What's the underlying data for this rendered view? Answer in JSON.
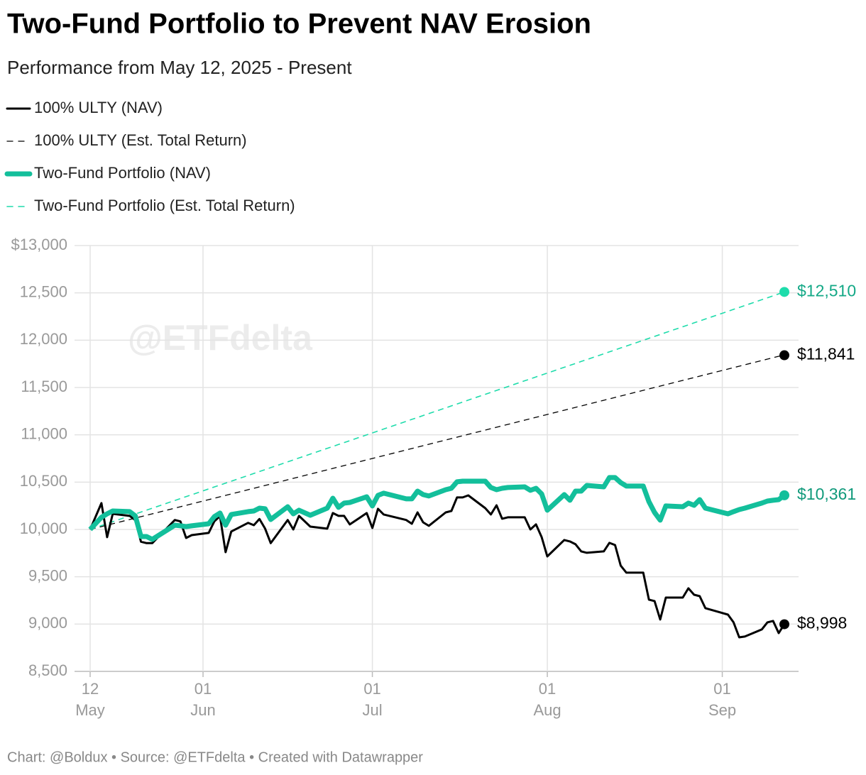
{
  "chart_data": {
    "type": "line",
    "title": "Two-Fund Portfolio to Prevent NAV Erosion",
    "subtitle": "Performance from May 12, 2025 - Present",
    "watermark": "@ETFdelta",
    "source": "Chart: @Boldux • Source: @ETFdelta • Created with Datawrapper",
    "x": [
      "2025-05-12",
      "2025-05-14",
      "2025-05-15",
      "2025-05-16",
      "2025-05-19",
      "2025-05-20",
      "2025-05-21",
      "2025-05-22",
      "2025-05-23",
      "2025-05-27",
      "2025-05-28",
      "2025-05-29",
      "2025-05-30",
      "2025-06-02",
      "2025-06-03",
      "2025-06-04",
      "2025-06-05",
      "2025-06-06",
      "2025-06-09",
      "2025-06-10",
      "2025-06-11",
      "2025-06-12",
      "2025-06-13",
      "2025-06-16",
      "2025-06-17",
      "2025-06-18",
      "2025-06-20",
      "2025-06-23",
      "2025-06-24",
      "2025-06-25",
      "2025-06-26",
      "2025-06-27",
      "2025-06-30",
      "2025-07-01",
      "2025-07-02",
      "2025-07-03",
      "2025-07-07",
      "2025-07-08",
      "2025-07-09",
      "2025-07-10",
      "2025-07-11",
      "2025-07-14",
      "2025-07-15",
      "2025-07-16",
      "2025-07-17",
      "2025-07-18",
      "2025-07-21",
      "2025-07-22",
      "2025-07-23",
      "2025-07-24",
      "2025-07-25",
      "2025-07-28",
      "2025-07-29",
      "2025-07-30",
      "2025-07-31",
      "2025-08-01",
      "2025-08-04",
      "2025-08-05",
      "2025-08-06",
      "2025-08-07",
      "2025-08-08",
      "2025-08-11",
      "2025-08-12",
      "2025-08-13",
      "2025-08-14",
      "2025-08-15",
      "2025-08-18",
      "2025-08-19",
      "2025-08-20",
      "2025-08-21",
      "2025-08-22",
      "2025-08-25",
      "2025-08-26",
      "2025-08-27",
      "2025-08-28",
      "2025-08-29",
      "2025-09-02",
      "2025-09-03",
      "2025-09-04",
      "2025-09-05",
      "2025-09-08",
      "2025-09-09",
      "2025-09-10",
      "2025-09-11",
      "2025-09-12"
    ],
    "series": [
      {
        "name": "100% ULTY (NAV)",
        "color": "#000000",
        "line_style": "solid",
        "end_label": "$8,998",
        "label_color": "#000000",
        "values": [
          10000,
          10278,
          9918,
          10165,
          10143,
          10098,
          9870,
          9855,
          9855,
          10100,
          10085,
          9910,
          9940,
          9963,
          10085,
          10140,
          9760,
          9978,
          10070,
          10045,
          10110,
          10008,
          9855,
          10100,
          10000,
          10143,
          10030,
          10008,
          10173,
          10143,
          10143,
          10053,
          10173,
          10015,
          10218,
          10158,
          10100,
          10060,
          10180,
          10075,
          10038,
          10180,
          10195,
          10338,
          10338,
          10360,
          10225,
          10158,
          10255,
          10113,
          10128,
          10128,
          10000,
          10053,
          9918,
          9715,
          9888,
          9873,
          9843,
          9768,
          9753,
          9768,
          9858,
          9835,
          9618,
          9543,
          9543,
          9258,
          9243,
          9048,
          9280,
          9280,
          9378,
          9310,
          9295,
          9168,
          9100,
          9018,
          8860,
          8868,
          8943,
          9018,
          9033,
          8905,
          8998
        ]
      },
      {
        "name": "100% ULTY (Est. Total Return)",
        "color": "#000000",
        "line_style": "dashed",
        "end_label": "$11,841",
        "label_color": "#000000",
        "values": [
          10000,
          10030,
          10045,
          10060,
          10105,
          10120,
          10135,
          10150,
          10165,
          10225,
          10240,
          10255,
          10270,
          10315,
          10330,
          10345,
          10360,
          10375,
          10420,
          10435,
          10450,
          10465,
          10480,
          10525,
          10540,
          10555,
          10585,
          10630,
          10645,
          10660,
          10675,
          10690,
          10735,
          10750,
          10765,
          10780,
          10840,
          10855,
          10870,
          10885,
          10900,
          10945,
          10960,
          10975,
          10990,
          11005,
          11050,
          11065,
          11080,
          11095,
          11110,
          11155,
          11170,
          11185,
          11200,
          11215,
          11260,
          11275,
          11290,
          11305,
          11320,
          11365,
          11380,
          11395,
          11410,
          11425,
          11470,
          11485,
          11500,
          11515,
          11530,
          11575,
          11590,
          11605,
          11620,
          11635,
          11695,
          11710,
          11725,
          11740,
          11785,
          11800,
          11815,
          11830,
          11841
        ]
      },
      {
        "name": "Two-Fund Portfolio (NAV)",
        "color": "#13bf9b",
        "line_style": "solid",
        "end_label": "$10,361",
        "label_color": "#109a7b",
        "values": [
          10000,
          10128,
          10165,
          10195,
          10188,
          10143,
          9925,
          9925,
          9895,
          10045,
          10038,
          10030,
          10038,
          10060,
          10135,
          10173,
          10045,
          10158,
          10188,
          10195,
          10225,
          10218,
          10105,
          10240,
          10165,
          10203,
          10150,
          10225,
          10330,
          10233,
          10278,
          10285,
          10345,
          10248,
          10360,
          10383,
          10323,
          10323,
          10405,
          10368,
          10353,
          10420,
          10435,
          10503,
          10510,
          10510,
          10510,
          10443,
          10420,
          10435,
          10443,
          10450,
          10413,
          10435,
          10375,
          10203,
          10368,
          10308,
          10405,
          10405,
          10465,
          10450,
          10548,
          10548,
          10495,
          10458,
          10458,
          10293,
          10180,
          10098,
          10248,
          10240,
          10278,
          10255,
          10315,
          10225,
          10165,
          10188,
          10210,
          10225,
          10278,
          10300,
          10308,
          10315,
          10361
        ]
      },
      {
        "name": "Two-Fund Portfolio (Est. Total Return)",
        "color": "#1edcab",
        "line_style": "dashed",
        "end_label": "$12,510",
        "label_color": "#13a886",
        "values": [
          10000,
          10041,
          10061,
          10082,
          10143,
          10163,
          10184,
          10204,
          10224,
          10306,
          10326,
          10347,
          10367,
          10428,
          10449,
          10469,
          10490,
          10510,
          10571,
          10592,
          10612,
          10632,
          10653,
          10714,
          10734,
          10755,
          10796,
          10857,
          10877,
          10898,
          10918,
          10938,
          11000,
          11020,
          11040,
          11061,
          11142,
          11163,
          11183,
          11204,
          11224,
          11285,
          11306,
          11326,
          11346,
          11367,
          11428,
          11448,
          11469,
          11489,
          11510,
          11571,
          11591,
          11612,
          11632,
          11652,
          11714,
          11734,
          11754,
          11775,
          11795,
          11856,
          11877,
          11897,
          11918,
          11938,
          11999,
          12020,
          12040,
          12060,
          12081,
          12142,
          12162,
          12183,
          12203,
          12224,
          12305,
          12326,
          12346,
          12366,
          12428,
          12448,
          12468,
          12489,
          12510
        ]
      }
    ],
    "xlim": [
      "2025-05-12",
      "2025-09-12"
    ],
    "xticks": [
      {
        "value": "2025-05-12",
        "label": "12 May"
      },
      {
        "value": "2025-06-01",
        "label": "01 Jun"
      },
      {
        "value": "2025-07-01",
        "label": "01 Jul"
      },
      {
        "value": "2025-08-01",
        "label": "01 Aug"
      },
      {
        "value": "2025-09-01",
        "label": "01 Sep"
      }
    ],
    "ylim": [
      8500,
      13000
    ],
    "yticks": [
      {
        "value": 8500,
        "label": "8,500"
      },
      {
        "value": 9000,
        "label": "9,000"
      },
      {
        "value": 9500,
        "label": "9,500"
      },
      {
        "value": 10000,
        "label": "10,000"
      },
      {
        "value": 10500,
        "label": "10,500"
      },
      {
        "value": 11000,
        "label": "11,000"
      },
      {
        "value": 11500,
        "label": "11,500"
      },
      {
        "value": 12000,
        "label": "12,000"
      },
      {
        "value": 12500,
        "label": "12,500"
      },
      {
        "value": 13000,
        "label": "$13,000"
      }
    ],
    "grid": true,
    "legend": "top-left"
  }
}
